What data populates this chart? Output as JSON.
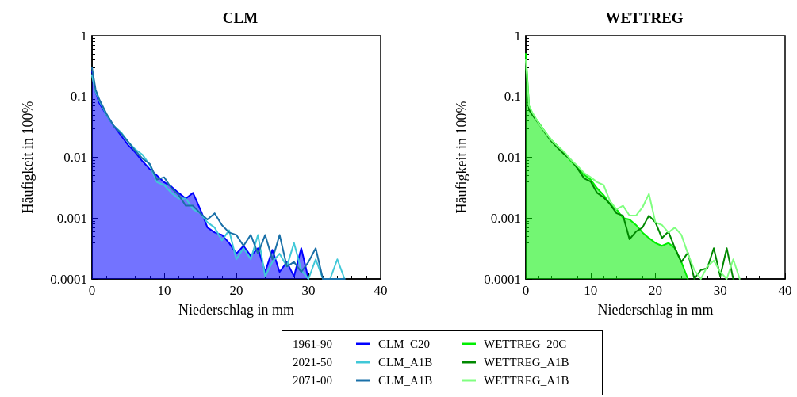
{
  "chart_data": [
    {
      "type": "line",
      "title": "CLM",
      "xlabel": "Niederschlag in mm",
      "ylabel": "Häufigkeit in 100%",
      "log": "y",
      "grid": false,
      "legend": "bottom",
      "xlim": [
        0,
        40
      ],
      "xticks": [
        0,
        10,
        20,
        30,
        40
      ],
      "ylim": [
        0.0001,
        1
      ],
      "yticks": [
        0.0001,
        0.001,
        0.01,
        0.1,
        1
      ],
      "annotations": [
        "1961-90",
        "2021-50",
        "2071-00"
      ],
      "x": [
        0,
        0.5,
        1,
        2,
        3,
        4,
        5,
        6,
        7,
        8,
        9,
        10,
        11,
        12,
        13,
        14,
        15,
        16,
        17,
        18,
        19,
        20,
        21,
        22,
        23,
        24,
        25,
        26,
        27,
        28,
        29,
        30,
        31,
        32,
        33,
        34,
        35
      ],
      "series": [
        {
          "name": "CLM_C20",
          "type": "area",
          "color": "#0000ff",
          "values": [
            0.26,
            0.12,
            0.078,
            0.05,
            0.033,
            0.023,
            0.016,
            0.012,
            0.0086,
            0.0064,
            0.005,
            0.0039,
            0.0033,
            0.0026,
            0.0021,
            0.0026,
            0.0014,
            0.0007,
            0.00058,
            0.00053,
            0.00039,
            0.00026,
            0.00035,
            0.00024,
            0.00032,
            0.00013,
            0.0003,
            0.00013,
            0.00019,
            0.00011,
            0.00032,
            0.0001,
            null,
            null,
            null,
            null,
            null
          ]
        },
        {
          "name": "CLM_A1B",
          "type": "line",
          "color": "#40c8d8",
          "values": [
            0.22,
            0.12,
            0.086,
            0.05,
            0.033,
            0.026,
            0.018,
            0.0135,
            0.011,
            0.0075,
            0.0039,
            0.0035,
            0.0026,
            0.0021,
            0.0021,
            0.0014,
            0.0012,
            0.00085,
            0.0007,
            0.00043,
            0.00063,
            0.00021,
            0.00032,
            0.00021,
            0.00053,
            0.00011,
            0.00019,
            0.00026,
            0.00016,
            0.00039,
            0.00014,
            0.0001,
            0.00021,
            0.0001,
            0.0001,
            0.00021,
            0.0001
          ]
        },
        {
          "name": "CLM_A1B",
          "type": "line",
          "color": "#1a70a8",
          "values": [
            0.3,
            0.13,
            0.09,
            0.052,
            0.033,
            0.025,
            0.018,
            0.0128,
            0.0095,
            0.0078,
            0.0043,
            0.0047,
            0.0031,
            0.0024,
            0.0016,
            0.0016,
            0.0012,
            0.00095,
            0.0012,
            0.00077,
            0.00058,
            0.00053,
            0.00035,
            0.00053,
            0.00026,
            0.00053,
            0.00021,
            0.00053,
            0.00016,
            0.00019,
            0.00013,
            0.00019,
            0.00032,
            0.0001,
            0.0001,
            0.0001,
            0.0001
          ]
        }
      ]
    },
    {
      "type": "line",
      "title": "WETTREG",
      "xlabel": "Niederschlag in mm",
      "ylabel": "Häufigkeit in 100%",
      "log": "y",
      "grid": false,
      "legend": "bottom",
      "xlim": [
        0,
        40
      ],
      "xticks": [
        0,
        10,
        20,
        30,
        40
      ],
      "ylim": [
        0.0001,
        1
      ],
      "yticks": [
        0.0001,
        0.001,
        0.01,
        0.1,
        1
      ],
      "x": [
        0,
        0.5,
        1,
        2,
        3,
        4,
        5,
        6,
        7,
        8,
        9,
        10,
        11,
        12,
        13,
        14,
        15,
        16,
        17,
        18,
        19,
        20,
        21,
        22,
        23,
        24,
        25,
        26,
        27,
        28,
        29,
        30,
        31,
        32,
        33
      ],
      "series": [
        {
          "name": "WETTREG_20C",
          "type": "area",
          "color": "#00ee00",
          "values": [
            0.5,
            0.07,
            0.052,
            0.037,
            0.026,
            0.019,
            0.015,
            0.0117,
            0.0086,
            0.0067,
            0.0052,
            0.0043,
            0.0031,
            0.0024,
            0.0017,
            0.0014,
            0.001,
            0.00095,
            0.00077,
            0.00058,
            0.00047,
            0.00039,
            0.00035,
            0.00039,
            0.00032,
            0.00019,
            0.0001,
            null,
            null,
            null,
            null,
            null,
            null,
            null,
            null
          ]
        },
        {
          "name": "WETTREG_A1B",
          "type": "line",
          "color": "#008800",
          "values": [
            0.3,
            0.06,
            0.05,
            0.036,
            0.025,
            0.018,
            0.014,
            0.011,
            0.009,
            0.0065,
            0.0045,
            0.004,
            0.0026,
            0.0022,
            0.0017,
            0.0012,
            0.0011,
            0.00045,
            0.0006,
            0.0007,
            0.0011,
            0.00085,
            0.00047,
            0.0006,
            0.00032,
            0.00019,
            0.00027,
            0.0001,
            0.00014,
            0.00015,
            0.00032,
            0.00011,
            0.00032,
            0.0001,
            null
          ]
        },
        {
          "name": "WETTREG_A1B",
          "type": "line",
          "color": "#80ff80",
          "values": [
            0.4,
            0.07,
            0.055,
            0.036,
            0.026,
            0.019,
            0.015,
            0.012,
            0.009,
            0.0072,
            0.0055,
            0.0047,
            0.0039,
            0.0035,
            0.0019,
            0.0014,
            0.0016,
            0.0011,
            0.0011,
            0.0015,
            0.0025,
            0.00085,
            0.00077,
            0.00058,
            0.0007,
            0.00053,
            0.00026,
            0.00014,
            0.0001,
            0.00016,
            0.0002,
            0.00013,
            0.0001,
            0.00021,
            0.0001
          ]
        }
      ]
    }
  ]
}
